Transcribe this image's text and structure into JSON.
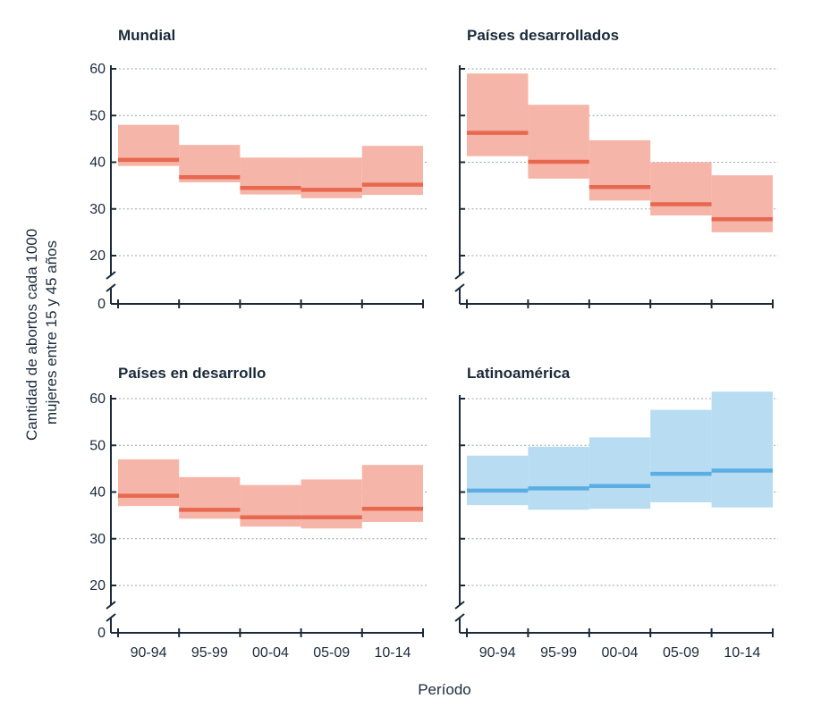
{
  "chart_data": {
    "type": "step-range",
    "ylabel_line1": "Cantidad de abortos cada 1000",
    "ylabel_line2": "mujeres entre 15 y 45 años",
    "xlabel": "Período",
    "categories": [
      "90-94",
      "95-99",
      "00-04",
      "05-09",
      "10-14"
    ],
    "y_ticks": [
      0,
      20,
      30,
      40,
      50,
      60
    ],
    "y_axis_break": true,
    "grid": "dotted horizontal",
    "panels": [
      {
        "title": "Mundial",
        "color_line": "#e8684f",
        "color_band": "#f5b5a8",
        "values": [
          40.5,
          36.8,
          34.5,
          34.1,
          35.2
        ],
        "lower": [
          39.2,
          35.7,
          33.1,
          32.3,
          33.0
        ],
        "upper": [
          48.0,
          43.7,
          41.0,
          41.0,
          43.5
        ]
      },
      {
        "title": "Países desarrollados",
        "color_line": "#e8684f",
        "color_band": "#f5b5a8",
        "values": [
          46.3,
          40.1,
          34.7,
          31.0,
          27.8
        ],
        "lower": [
          41.3,
          36.5,
          31.8,
          28.6,
          25.0
        ],
        "upper": [
          59.0,
          52.3,
          44.7,
          40.0,
          37.2
        ]
      },
      {
        "title": "Países en desarrollo",
        "color_line": "#e8684f",
        "color_band": "#f5b5a8",
        "values": [
          39.2,
          36.2,
          34.6,
          34.6,
          36.4
        ],
        "lower": [
          37.0,
          34.3,
          32.6,
          32.2,
          33.6
        ],
        "upper": [
          47.0,
          43.2,
          41.5,
          42.7,
          45.8
        ]
      },
      {
        "title": "Latinoamérica",
        "color_line": "#5aaee2",
        "color_band": "#b8dcf2",
        "values": [
          40.3,
          40.8,
          41.3,
          43.9,
          44.6
        ],
        "lower": [
          37.2,
          36.2,
          36.4,
          37.8,
          36.7
        ],
        "upper": [
          47.8,
          49.7,
          51.7,
          57.6,
          61.5
        ]
      }
    ]
  }
}
